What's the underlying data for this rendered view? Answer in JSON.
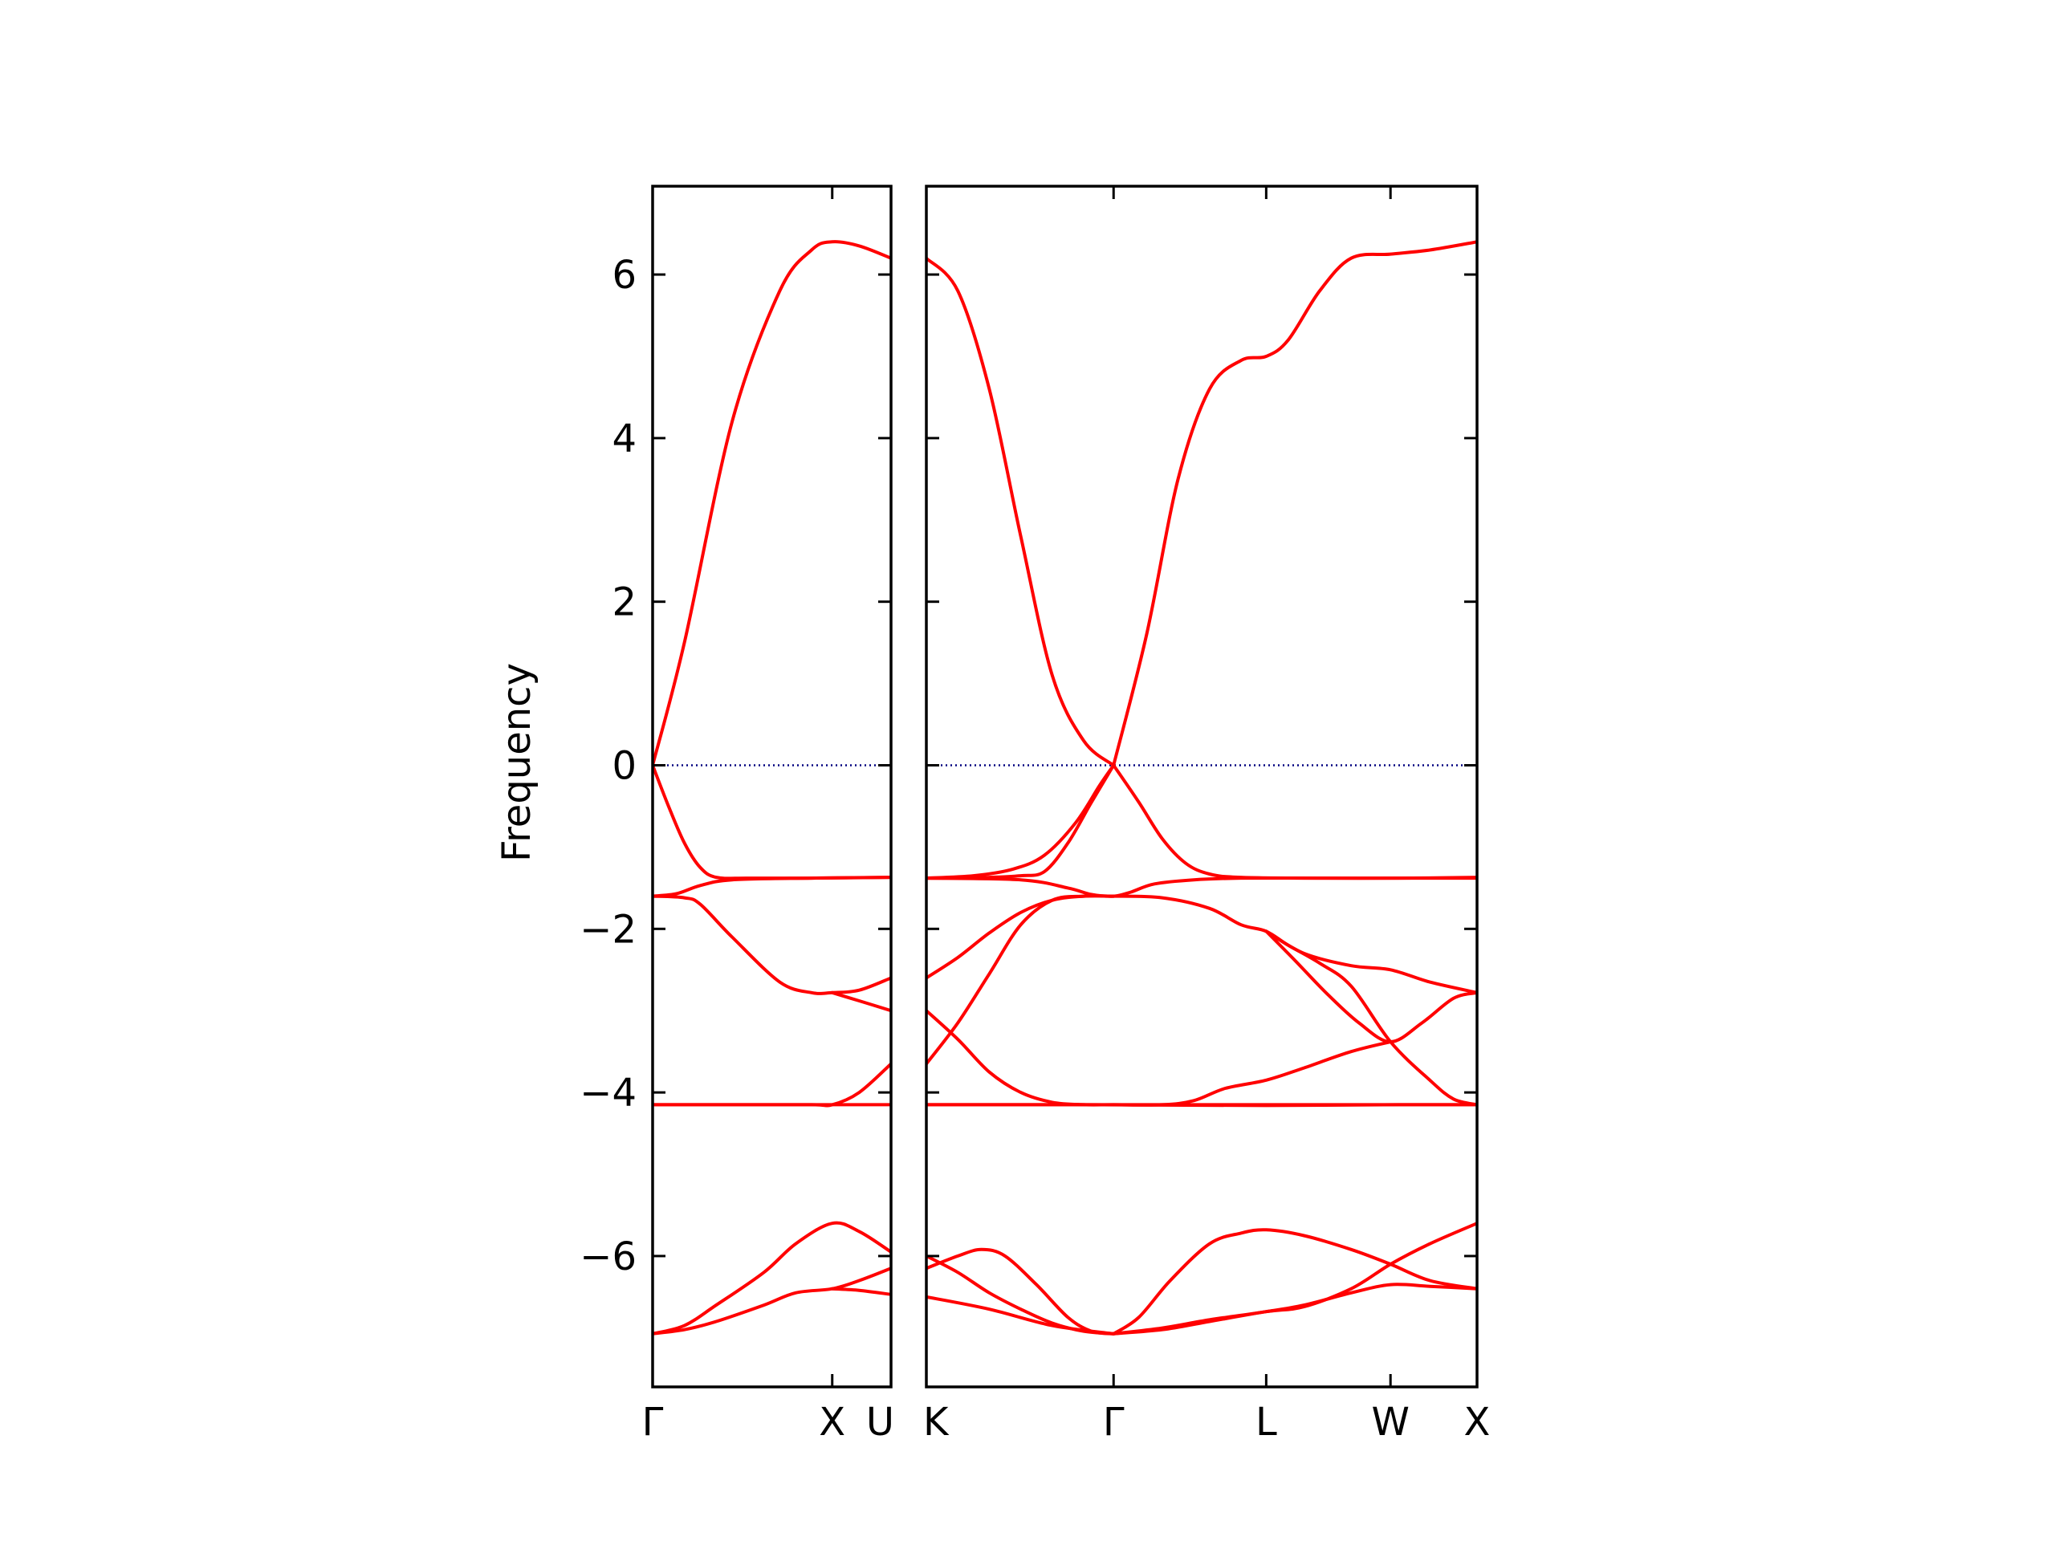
{
  "chart_data": {
    "type": "line",
    "title": "",
    "xlabel": "",
    "ylabel": "Frequency",
    "ylim": [
      -7.6,
      7.08
    ],
    "yticks": [
      -6,
      -4,
      -2,
      0,
      2,
      4,
      6
    ],
    "ytick_labels": [
      "−6",
      "−4",
      "−2",
      "0",
      "2",
      "4",
      "6"
    ],
    "grid": false,
    "line_color": "#ff0000",
    "zero_line_color": "#000080",
    "panels": [
      {
        "xlim": [
          0,
          1.5
        ],
        "xticks": [
          {
            "x": 0,
            "label": "Γ"
          },
          {
            "x": 1.13,
            "label": "X"
          },
          {
            "x": 1.5,
            "label": "U"
          }
        ],
        "series": [
          {
            "x": [
              0,
              0.2,
              0.5,
              0.8,
              1.0,
              1.13,
              1.3,
              1.5
            ],
            "y": [
              0,
              1.5,
              4.2,
              5.8,
              6.3,
              6.4,
              6.35,
              6.2
            ]
          },
          {
            "x": [
              0,
              0.1,
              0.2,
              0.3,
              0.4,
              0.6,
              1.0,
              1.5
            ],
            "y": [
              0,
              -0.5,
              -0.95,
              -1.25,
              -1.37,
              -1.38,
              -1.38,
              -1.37
            ]
          },
          {
            "x": [
              0,
              0.15,
              0.3,
              0.5,
              1.0,
              1.5
            ],
            "y": [
              -1.6,
              -1.57,
              -1.47,
              -1.4,
              -1.38,
              -1.37
            ]
          },
          {
            "x": [
              0,
              0.2,
              0.3,
              0.5,
              0.8,
              1.0,
              1.13,
              1.3,
              1.5
            ],
            "y": [
              -1.6,
              -1.62,
              -1.7,
              -2.1,
              -2.65,
              -2.78,
              -2.78,
              -2.75,
              -2.6
            ]
          },
          {
            "x": [
              1.13,
              1.3,
              1.5
            ],
            "y": [
              -2.78,
              -2.88,
              -3.0
            ]
          },
          {
            "x": [
              0,
              0.5,
              1.0,
              1.13,
              1.3,
              1.5
            ],
            "y": [
              -4.15,
              -4.15,
              -4.15,
              -4.15,
              -4.0,
              -3.65
            ]
          },
          {
            "x": [
              0,
              0.5,
              1.0,
              1.5
            ],
            "y": [
              -4.15,
              -4.15,
              -4.15,
              -4.15
            ]
          },
          {
            "x": [
              0,
              0.2,
              0.4,
              0.7,
              0.9,
              1.13,
              1.3,
              1.5
            ],
            "y": [
              -6.95,
              -6.85,
              -6.6,
              -6.2,
              -5.85,
              -5.6,
              -5.7,
              -5.95
            ]
          },
          {
            "x": [
              0,
              0.2,
              0.4,
              0.7,
              0.9,
              1.13,
              1.3,
              1.5
            ],
            "y": [
              -6.95,
              -6.9,
              -6.8,
              -6.6,
              -6.45,
              -6.4,
              -6.3,
              -6.15
            ]
          },
          {
            "x": [
              1.13,
              1.3,
              1.5
            ],
            "y": [
              -6.4,
              -6.42,
              -6.47
            ]
          }
        ]
      },
      {
        "xlim": [
          0,
          3.5
        ],
        "xticks": [
          {
            "x": 0,
            "label": "K"
          },
          {
            "x": 1.19,
            "label": "Γ"
          },
          {
            "x": 2.16,
            "label": "L"
          },
          {
            "x": 2.95,
            "label": "W"
          },
          {
            "x": 3.5,
            "label": "X"
          }
        ],
        "series": [
          {
            "x": [
              0,
              0.2,
              0.4,
              0.6,
              0.8,
              1.0,
              1.19
            ],
            "y": [
              6.2,
              5.8,
              4.6,
              2.8,
              1.1,
              0.3,
              0
            ]
          },
          {
            "x": [
              1.19,
              1.4,
              1.6,
              1.8,
              2.0,
              2.16,
              2.3,
              2.5,
              2.7,
              2.95,
              3.2,
              3.5
            ],
            "y": [
              0,
              1.6,
              3.5,
              4.6,
              4.95,
              5.0,
              5.2,
              5.8,
              6.2,
              6.25,
              6.3,
              6.4
            ]
          },
          {
            "x": [
              0,
              0.3,
              0.55,
              0.75,
              0.95,
              1.1,
              1.19
            ],
            "y": [
              -1.38,
              -1.35,
              -1.27,
              -1.1,
              -0.7,
              -0.25,
              0
            ]
          },
          {
            "x": [
              0,
              0.4,
              0.6,
              0.75,
              0.9,
              1.05,
              1.19
            ],
            "y": [
              -1.38,
              -1.37,
              -1.35,
              -1.3,
              -0.95,
              -0.45,
              0
            ]
          },
          {
            "x": [
              1.19,
              1.35,
              1.5,
              1.65,
              1.8,
              2.0,
              2.5,
              3.0,
              3.5
            ],
            "y": [
              0,
              -0.45,
              -0.9,
              -1.2,
              -1.33,
              -1.37,
              -1.38,
              -1.38,
              -1.37
            ]
          },
          {
            "x": [
              0,
              0.6,
              0.9,
              1.05,
              1.19,
              1.3,
              1.45,
              1.7,
              2.0,
              2.5,
              3.0,
              3.5
            ],
            "y": [
              -1.38,
              -1.4,
              -1.5,
              -1.58,
              -1.6,
              -1.55,
              -1.45,
              -1.4,
              -1.38,
              -1.38,
              -1.38,
              -1.38
            ]
          },
          {
            "x": [
              0,
              0.2,
              0.4,
              0.6,
              0.8,
              1.0,
              1.19
            ],
            "y": [
              -2.6,
              -2.35,
              -2.05,
              -1.8,
              -1.65,
              -1.6,
              -1.6
            ]
          },
          {
            "x": [
              0,
              0.2,
              0.4,
              0.6,
              0.8,
              1.0,
              1.19
            ],
            "y": [
              -3.65,
              -3.15,
              -2.55,
              -1.95,
              -1.65,
              -1.6,
              -1.6
            ]
          },
          {
            "x": [
              1.19,
              1.5,
              1.8,
              2.0,
              2.16,
              2.3,
              2.5,
              2.7,
              2.95,
              3.2,
              3.35,
              3.5
            ],
            "y": [
              -1.6,
              -1.62,
              -1.75,
              -1.95,
              -2.03,
              -2.2,
              -2.42,
              -2.7,
              -3.38,
              -3.85,
              -4.08,
              -4.15
            ]
          },
          {
            "x": [
              2.16,
              2.4,
              2.7,
              2.95,
              3.2,
              3.5
            ],
            "y": [
              -2.03,
              -2.3,
              -2.45,
              -2.5,
              -2.65,
              -2.78
            ]
          },
          {
            "x": [
              2.16,
              2.35,
              2.55,
              2.75,
              2.95,
              3.15,
              3.35,
              3.5
            ],
            "y": [
              -2.03,
              -2.4,
              -2.8,
              -3.15,
              -3.38,
              -3.15,
              -2.85,
              -2.78
            ]
          },
          {
            "x": [
              0,
              0.2,
              0.4,
              0.6,
              0.8,
              1.0,
              1.19,
              1.5,
              1.7,
              1.9,
              2.16,
              2.4,
              2.7,
              2.95
            ],
            "y": [
              -3.0,
              -3.35,
              -3.75,
              -4.0,
              -4.12,
              -4.15,
              -4.15,
              -4.15,
              -4.1,
              -3.95,
              -3.85,
              -3.7,
              -3.5,
              -3.38
            ]
          },
          {
            "x": [
              0,
              1.0,
              2.0,
              3.0,
              3.5
            ],
            "y": [
              -4.15,
              -4.15,
              -4.15,
              -4.15,
              -4.15
            ]
          },
          {
            "x": [
              0,
              1.0,
              2.16,
              3.0,
              3.5
            ],
            "y": [
              -4.15,
              -4.15,
              -4.16,
              -4.15,
              -4.15
            ]
          },
          {
            "x": [
              0,
              0.2,
              0.35,
              0.5,
              0.7,
              0.9,
              1.05,
              1.19
            ],
            "y": [
              -6.15,
              -6.0,
              -5.92,
              -6.0,
              -6.35,
              -6.75,
              -6.92,
              -6.95
            ]
          },
          {
            "x": [
              0,
              0.2,
              0.4,
              0.6,
              0.8,
              1.0,
              1.19
            ],
            "y": [
              -6.0,
              -6.2,
              -6.45,
              -6.65,
              -6.82,
              -6.92,
              -6.95
            ]
          },
          {
            "x": [
              0,
              0.4,
              0.8,
              1.19
            ],
            "y": [
              -6.5,
              -6.65,
              -6.85,
              -6.95
            ]
          },
          {
            "x": [
              1.19,
              1.35,
              1.55,
              1.8,
              2.0,
              2.16,
              2.4,
              2.7,
              2.95,
              3.2,
              3.5
            ],
            "y": [
              -6.95,
              -6.75,
              -6.3,
              -5.85,
              -5.72,
              -5.68,
              -5.75,
              -5.92,
              -6.1,
              -6.3,
              -6.4
            ]
          },
          {
            "x": [
              1.19,
              1.5,
              1.8,
              2.16,
              2.4,
              2.7,
              2.95,
              3.2,
              3.5
            ],
            "y": [
              -6.95,
              -6.9,
              -6.8,
              -6.68,
              -6.62,
              -6.4,
              -6.1,
              -5.85,
              -5.6
            ]
          },
          {
            "x": [
              1.19,
              1.5,
              1.8,
              2.16,
              2.4,
              2.7,
              2.95,
              3.2,
              3.5
            ],
            "y": [
              -6.95,
              -6.88,
              -6.78,
              -6.68,
              -6.6,
              -6.45,
              -6.35,
              -6.37,
              -6.4
            ]
          }
        ]
      }
    ]
  }
}
